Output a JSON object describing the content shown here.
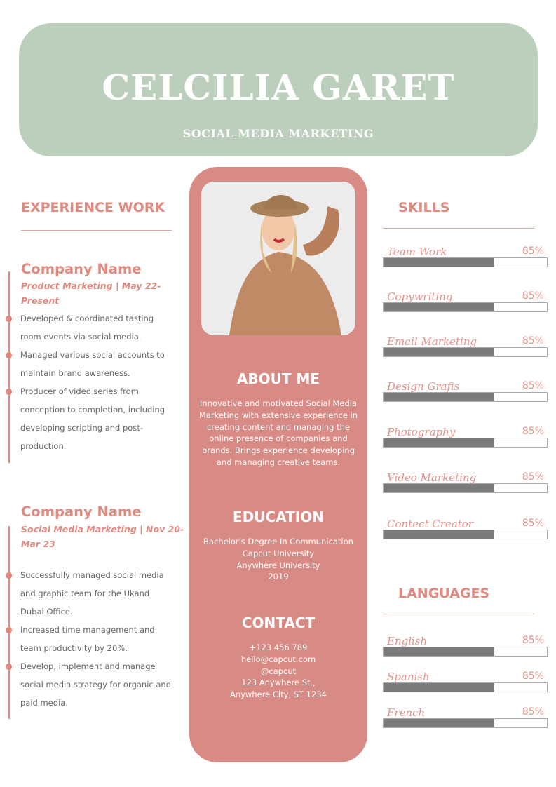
{
  "header": {
    "name": "CELCILIA GARET",
    "role": "SOCIAL MEDIA MARKETING"
  },
  "colors": {
    "header_bg": "#bccfbc",
    "accent": "#e0897f",
    "center_bg": "#d88a84",
    "bar_fill": "#7b7b7b"
  },
  "experience": {
    "heading": "EXPERIENCE WORK",
    "jobs": [
      {
        "company": "Company Name",
        "subtitle": "Product Marketing | May 22-Present",
        "bullets": [
          [
            "Developed & coordinated tasting",
            "room events via social media."
          ],
          [
            "Managed various social accounts to",
            "maintain brand awareness."
          ],
          [
            "Producer of video series from",
            "conception to completion, including",
            "developing scripting and post-",
            "production."
          ]
        ]
      },
      {
        "company": "Company Name",
        "subtitle": "Social Media Marketing | Nov 20-Mar 23",
        "bullets": [
          [
            "Successfully managed social media",
            "and graphic team for the Ukand",
            "Dubai Office."
          ],
          [
            "Increased time management and",
            "team productivity by 20%."
          ],
          [
            "Develop, implement and manage",
            "social media strategy for organic and",
            " paid media."
          ]
        ]
      }
    ]
  },
  "center": {
    "photo": "profile-photo",
    "about": {
      "heading": "ABOUT ME",
      "text": "Innovative and motivated Social Media Marketing with extensive experience in creating content and managing the online presence of companies and brands. Brings experience developing and managing creative teams."
    },
    "education": {
      "heading": "EDUCATION",
      "lines": [
        "Bachelor's Degree In Communication",
        "Capcut University",
        "Anywhere University",
        "2019"
      ]
    },
    "contact": {
      "heading": "CONTACT",
      "lines": [
        "+123  456 789",
        "hello@capcut.com",
        "@capcut",
        "123 Anywhere St.,",
        "Anywhere City, ST 1234"
      ]
    }
  },
  "skills": {
    "heading": "SKILLS",
    "items": [
      {
        "label": "Team Work",
        "pct": "85%",
        "fill": 0.68
      },
      {
        "label": "Copywriting",
        "pct": "85%",
        "fill": 0.68
      },
      {
        "label": "Email Marketing",
        "pct": "85%",
        "fill": 0.68
      },
      {
        "label": "Design Grafis",
        "pct": "85%",
        "fill": 0.68
      },
      {
        "label": "Photography",
        "pct": "85%",
        "fill": 0.68
      },
      {
        "label": "Video Marketing",
        "pct": "85%",
        "fill": 0.68
      },
      {
        "label": "Contect Creator",
        "pct": "85%",
        "fill": 0.68
      }
    ]
  },
  "languages": {
    "heading": "LANGUAGES",
    "items": [
      {
        "label": "English",
        "pct": "85%",
        "fill": 0.68
      },
      {
        "label": "Spanish",
        "pct": "85%",
        "fill": 0.68
      },
      {
        "label": "French",
        "pct": "85%",
        "fill": 0.68
      }
    ]
  }
}
